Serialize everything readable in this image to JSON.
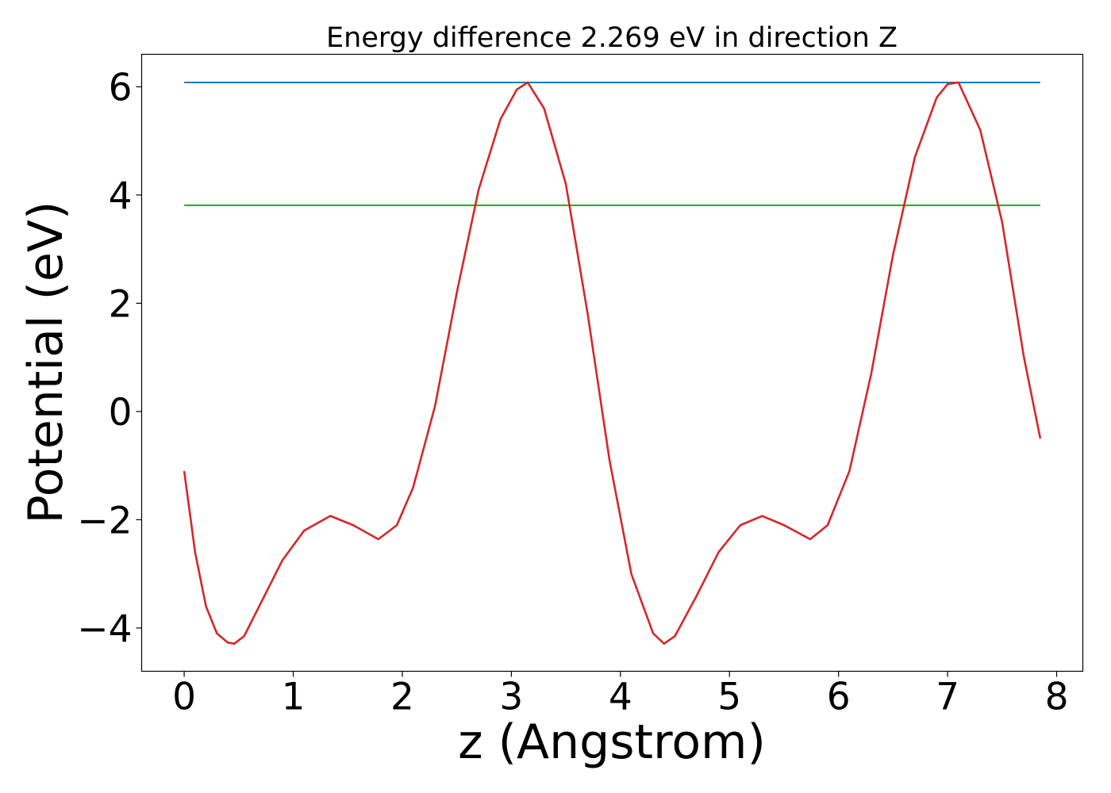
{
  "chart_data": {
    "type": "line",
    "title": "Energy difference 2.269 eV in direction Z",
    "xlabel": "z (Angstrom)",
    "ylabel": "Potential (eV)",
    "xlim": [
      -0.39,
      8.24
    ],
    "ylim": [
      -4.8,
      6.6
    ],
    "xticks": [
      0,
      1,
      2,
      3,
      4,
      5,
      6,
      7,
      8
    ],
    "xtick_labels": [
      "0",
      "1",
      "2",
      "3",
      "4",
      "5",
      "6",
      "7",
      "8"
    ],
    "yticks": [
      -4,
      -2,
      0,
      2,
      4,
      6
    ],
    "ytick_labels": [
      "−4",
      "−2",
      "0",
      "2",
      "4",
      "6"
    ],
    "grid": false,
    "series": [
      {
        "color": "#d62728",
        "x": [
          0.0,
          0.1,
          0.2,
          0.3,
          0.4,
          0.46,
          0.55,
          0.7,
          0.9,
          1.1,
          1.34,
          1.55,
          1.78,
          1.95,
          2.1,
          2.3,
          2.5,
          2.7,
          2.9,
          3.05,
          3.15,
          3.3,
          3.5,
          3.7,
          3.9,
          4.1,
          4.3,
          4.4,
          4.5,
          4.7,
          4.9,
          5.1,
          5.3,
          5.5,
          5.74,
          5.9,
          6.1,
          6.3,
          6.5,
          6.7,
          6.9,
          7.0,
          7.1,
          7.3,
          7.5,
          7.7,
          7.85
        ],
        "y": [
          -1.1,
          -2.6,
          -3.6,
          -4.1,
          -4.27,
          -4.29,
          -4.15,
          -3.55,
          -2.75,
          -2.2,
          -1.93,
          -2.1,
          -2.36,
          -2.1,
          -1.4,
          0.1,
          2.2,
          4.1,
          5.4,
          5.95,
          6.08,
          5.6,
          4.2,
          1.8,
          -0.9,
          -3.0,
          -4.1,
          -4.29,
          -4.15,
          -3.4,
          -2.6,
          -2.1,
          -1.93,
          -2.1,
          -2.36,
          -2.1,
          -1.1,
          0.7,
          2.9,
          4.7,
          5.8,
          6.05,
          6.08,
          5.2,
          3.5,
          1.0,
          -0.5
        ]
      },
      {
        "color": "#1f77b4",
        "x": [
          0.0,
          7.85
        ],
        "y": [
          6.08,
          6.08
        ]
      },
      {
        "color": "#2ca02c",
        "x": [
          0.0,
          7.85
        ],
        "y": [
          3.81,
          3.81
        ]
      }
    ]
  }
}
